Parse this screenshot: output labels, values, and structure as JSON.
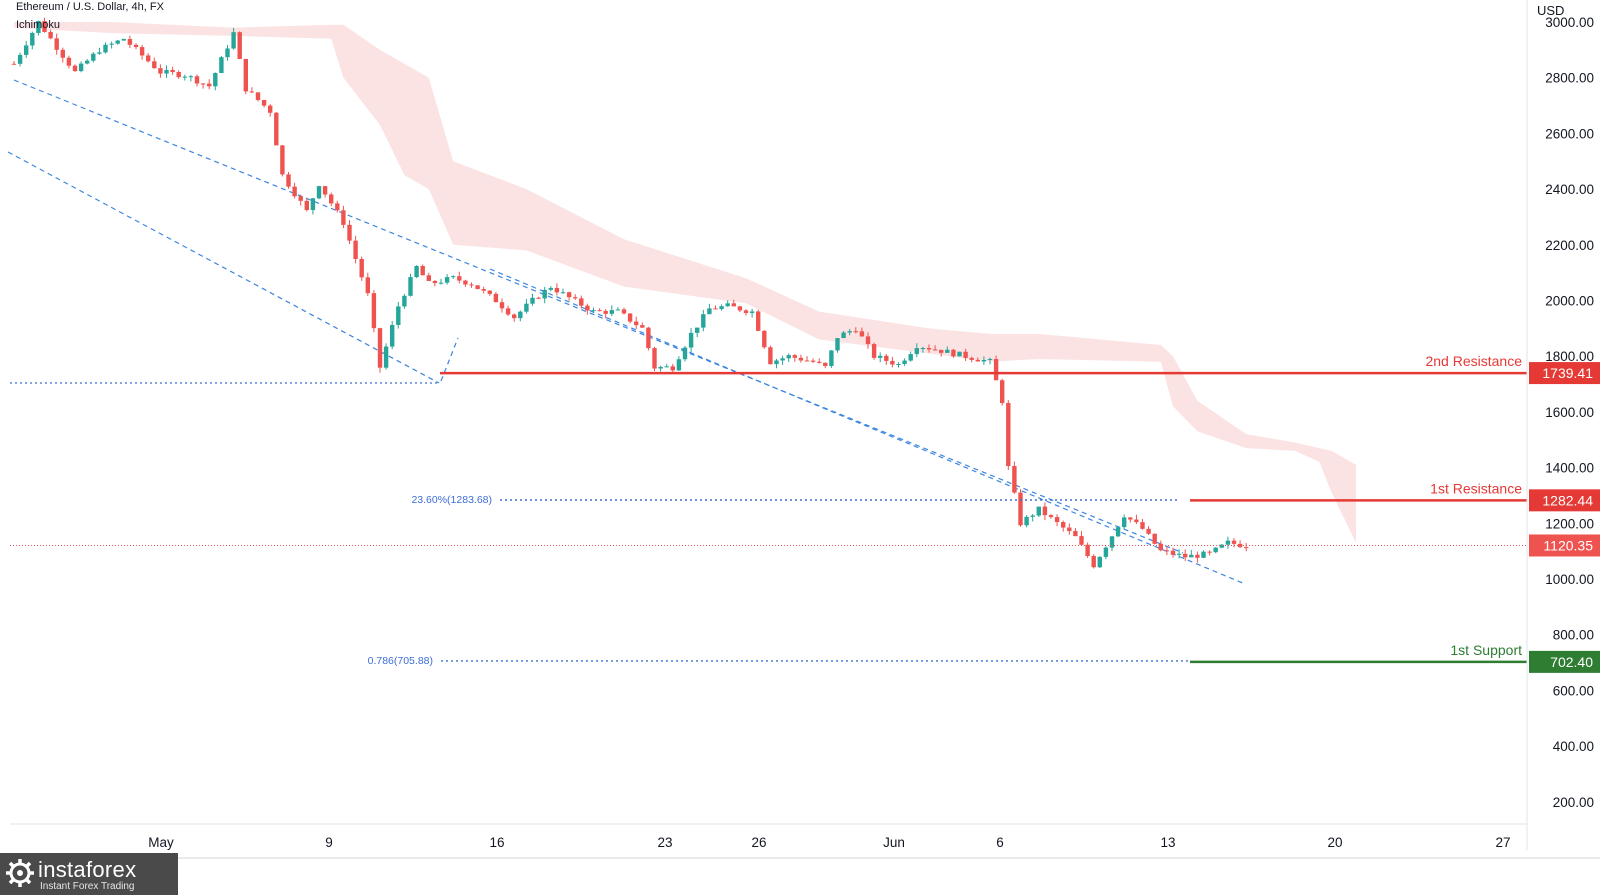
{
  "header": {
    "symbol_line": "Ethereum / U.S. Dollar, 4h, FX",
    "indicator": "Ichimoku"
  },
  "brand": {
    "name": "instaforex",
    "tagline": "Instant Forex Trading"
  },
  "colors": {
    "up": "#26a69a",
    "down": "#ef5350",
    "cloud": "#fbd9d9",
    "resistance": "#e53935",
    "support": "#2e7d32",
    "trend": "#3d86e0",
    "fib": "#3c6fd6"
  },
  "chart_data": {
    "type": "candlestick",
    "currency": "USD",
    "x_labels": [
      "May",
      "9",
      "16",
      "23",
      "26",
      "Jun",
      "6",
      "13",
      "20",
      "27"
    ],
    "y_ticks": [
      "3000.00",
      "2800.00",
      "2600.00",
      "2400.00",
      "2200.00",
      "2000.00",
      "1800.00",
      "1600.00",
      "1400.00",
      "1200.00",
      "1000.00",
      "800.00",
      "600.00",
      "400.00",
      "200.00"
    ],
    "ylim": [
      150,
      3100
    ],
    "levels": [
      {
        "label": "2nd Resistance",
        "value": "1739.41",
        "price": 1739.41,
        "kind": "resistance"
      },
      {
        "label": "1st Resistance",
        "value": "1282.44",
        "price": 1282.44,
        "kind": "resistance"
      },
      {
        "label": "1st Support",
        "value": "702.40",
        "price": 702.4,
        "kind": "support"
      }
    ],
    "current_price": {
      "value": "1120.35",
      "price": 1120.35
    },
    "fib_levels": [
      {
        "label": "23.60%(1283.68)",
        "price": 1283.68
      },
      {
        "label": "0.786(705.88)",
        "price": 705.88
      }
    ],
    "price_path": [
      [
        0,
        2850
      ],
      [
        4,
        3000
      ],
      [
        10,
        2820
      ],
      [
        14,
        2900
      ],
      [
        18,
        2940
      ],
      [
        24,
        2820
      ],
      [
        28,
        2810
      ],
      [
        32,
        2770
      ],
      [
        36,
        2960
      ],
      [
        38,
        2760
      ],
      [
        42,
        2680
      ],
      [
        44,
        2450
      ],
      [
        48,
        2320
      ],
      [
        50,
        2420
      ],
      [
        54,
        2280
      ],
      [
        58,
        2020
      ],
      [
        60,
        1760
      ],
      [
        63,
        1980
      ],
      [
        66,
        2120
      ],
      [
        68,
        2060
      ],
      [
        72,
        2080
      ],
      [
        75,
        2060
      ],
      [
        79,
        2000
      ],
      [
        82,
        1940
      ],
      [
        85,
        2000
      ],
      [
        88,
        2050
      ],
      [
        91,
        2010
      ],
      [
        95,
        1960
      ],
      [
        99,
        1960
      ],
      [
        103,
        1900
      ],
      [
        105,
        1760
      ],
      [
        108,
        1760
      ],
      [
        111,
        1880
      ],
      [
        114,
        1970
      ],
      [
        117,
        1980
      ],
      [
        121,
        1960
      ],
      [
        124,
        1780
      ],
      [
        127,
        1800
      ],
      [
        131,
        1780
      ],
      [
        133,
        1760
      ],
      [
        135,
        1870
      ],
      [
        138,
        1900
      ],
      [
        141,
        1800
      ],
      [
        145,
        1770
      ],
      [
        148,
        1840
      ],
      [
        152,
        1820
      ],
      [
        156,
        1800
      ],
      [
        160,
        1780
      ],
      [
        162,
        1640
      ],
      [
        163,
        1400
      ],
      [
        165,
        1200
      ],
      [
        168,
        1250
      ],
      [
        171,
        1200
      ],
      [
        174,
        1150
      ],
      [
        177,
        1050
      ],
      [
        179,
        1120
      ],
      [
        182,
        1230
      ],
      [
        185,
        1180
      ],
      [
        188,
        1100
      ],
      [
        192,
        1080
      ],
      [
        196,
        1090
      ],
      [
        199,
        1130
      ],
      [
        202,
        1120
      ]
    ],
    "cloud": [
      [
        0,
        2980,
        3000
      ],
      [
        16,
        2960,
        3000
      ],
      [
        36,
        2950,
        2980
      ],
      [
        52,
        2940,
        2990
      ],
      [
        54,
        2800,
        2990
      ],
      [
        60,
        2630,
        2900
      ],
      [
        64,
        2450,
        2850
      ],
      [
        68,
        2400,
        2800
      ],
      [
        72,
        2200,
        2500
      ],
      [
        84,
        2180,
        2400
      ],
      [
        100,
        2050,
        2220
      ],
      [
        120,
        1990,
        2080
      ],
      [
        132,
        1860,
        1960
      ],
      [
        150,
        1810,
        1900
      ],
      [
        160,
        1780,
        1880
      ],
      [
        168,
        1790,
        1880
      ],
      [
        188,
        1780,
        1840
      ],
      [
        190,
        1620,
        1800
      ],
      [
        194,
        1530,
        1640
      ],
      [
        202,
        1470,
        1520
      ],
      [
        210,
        1460,
        1490
      ],
      [
        214,
        1420,
        1470
      ],
      [
        216,
        1310,
        1460
      ],
      [
        220,
        1130,
        1410
      ]
    ]
  }
}
